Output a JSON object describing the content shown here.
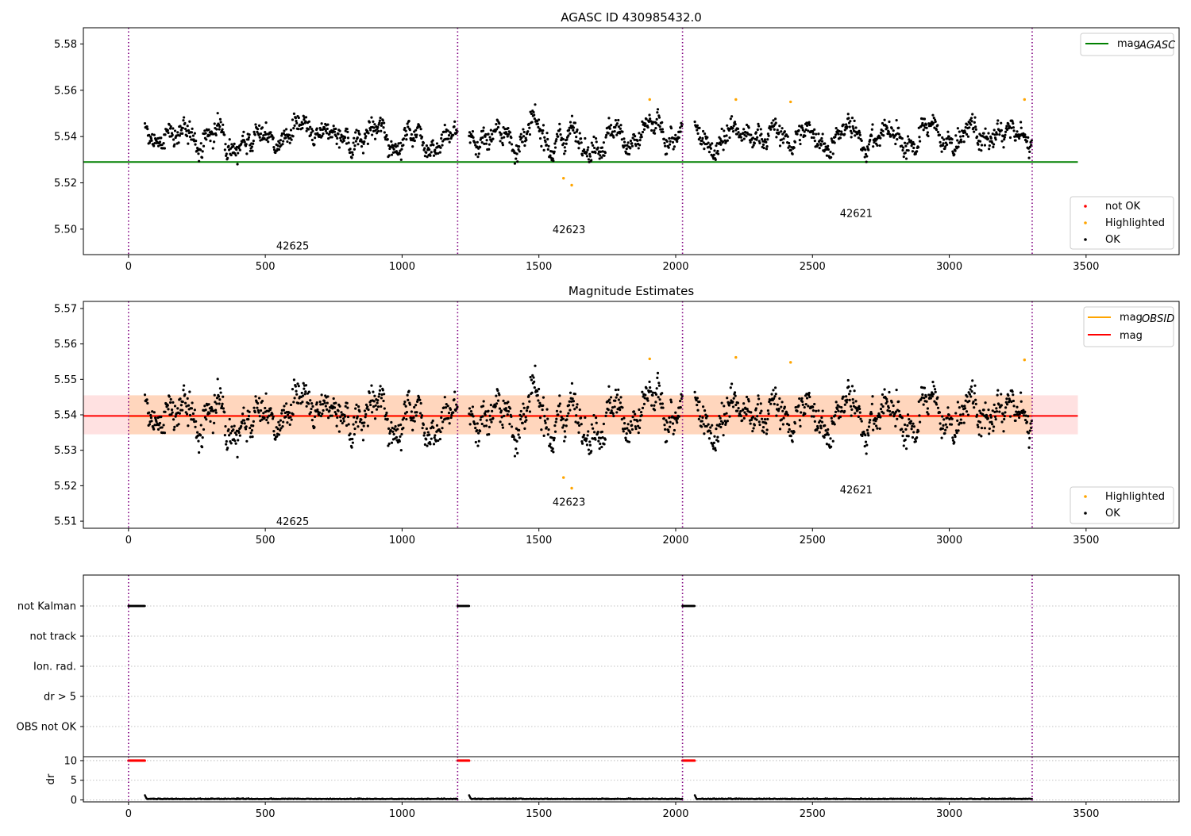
{
  "chart_data": [
    {
      "id": "agasc",
      "type": "scatter",
      "title": "AGASC ID 430985432.0",
      "xlabel": "",
      "ylabel": "",
      "xlim": [
        -165,
        3840
      ],
      "ylim": [
        5.489,
        5.587
      ],
      "xticks": [
        0,
        500,
        1000,
        1500,
        2000,
        2500,
        3000,
        3500
      ],
      "yticks": [
        5.5,
        5.52,
        5.54,
        5.56,
        5.58
      ],
      "ytick_labels": [
        "5.50",
        "5.52",
        "5.54",
        "5.56",
        "5.58"
      ],
      "grid": false,
      "obsid_boundaries": [
        0,
        1203,
        2025,
        3303
      ],
      "obsid_labels": [
        {
          "text": "42625",
          "x": 600,
          "y": 5.493
        },
        {
          "text": "42623",
          "x": 1610,
          "y": 5.5
        },
        {
          "text": "42621",
          "x": 2660,
          "y": 5.507
        }
      ],
      "reference_lines": [
        {
          "name": "mag_AGASC",
          "value": 5.529,
          "x_range": [
            0,
            3470
          ],
          "color": "#008000"
        }
      ],
      "series": [
        {
          "name": "not OK",
          "color": "#ff0000",
          "values": []
        },
        {
          "name": "Highlighted",
          "color": "#ffa500",
          "points": [
            [
              1590,
              5.522
            ],
            [
              1620,
              5.519
            ],
            [
              1905,
              5.556
            ],
            [
              2220,
              5.556
            ],
            [
              2420,
              5.555
            ],
            [
              3275,
              5.556
            ]
          ]
        },
        {
          "name": "OK",
          "color": "#000000",
          "segments": [
            [
              60,
              1203
            ],
            [
              1245,
              2025
            ],
            [
              2070,
              3303
            ]
          ],
          "level": 5.54,
          "spread": 0.006
        }
      ],
      "legends": [
        {
          "placement": "upper-right",
          "items": [
            {
              "label": "mag",
              "sub": "AGASC",
              "kind": "line",
              "color": "#008000"
            }
          ]
        },
        {
          "placement": "lower-right",
          "items": [
            {
              "label": "not OK",
              "kind": "dot",
              "color": "#ff0000"
            },
            {
              "label": "Highlighted",
              "kind": "dot",
              "color": "#ffa500"
            },
            {
              "label": "OK",
              "kind": "dot",
              "color": "#000000"
            }
          ]
        }
      ]
    },
    {
      "id": "estimates",
      "type": "scatter",
      "title": "Magnitude Estimates",
      "xlabel": "",
      "ylabel": "",
      "xlim": [
        -165,
        3840
      ],
      "ylim": [
        5.508,
        5.572
      ],
      "xticks": [
        0,
        500,
        1000,
        1500,
        2000,
        2500,
        3000,
        3500
      ],
      "yticks": [
        5.51,
        5.52,
        5.53,
        5.54,
        5.55,
        5.56,
        5.57
      ],
      "ytick_labels": [
        "5.51",
        "5.52",
        "5.53",
        "5.54",
        "5.55",
        "5.56",
        "5.57"
      ],
      "grid": false,
      "obsid_boundaries": [
        0,
        1203,
        2025,
        3303
      ],
      "obsid_labels": [
        {
          "text": "42625",
          "x": 600,
          "y": 5.51
        },
        {
          "text": "42623",
          "x": 1610,
          "y": 5.5155
        },
        {
          "text": "42621",
          "x": 2660,
          "y": 5.519
        }
      ],
      "bands": [
        {
          "name": "mag band",
          "range": [
            5.5345,
            5.5455
          ],
          "x_range": [
            -165,
            3470
          ],
          "color": "#ffb3b3"
        },
        {
          "name": "mag_OBSID band",
          "range": [
            5.5345,
            5.5455
          ],
          "x_range": [
            0,
            3303
          ],
          "color": "#ffcc99"
        }
      ],
      "reference_lines": [
        {
          "name": "mag_OBSID",
          "value": 5.5396,
          "x_range": [
            0,
            3303
          ],
          "color": "#ffa500"
        },
        {
          "name": "mag",
          "value": 5.5397,
          "x_range": [
            -165,
            3470
          ],
          "color": "#ff0000"
        }
      ],
      "series": [
        {
          "name": "Highlighted",
          "color": "#ffa500",
          "points": [
            [
              1590,
              5.5223
            ],
            [
              1620,
              5.5193
            ],
            [
              1905,
              5.5558
            ],
            [
              2220,
              5.5562
            ],
            [
              2420,
              5.5548
            ],
            [
              3275,
              5.5555
            ]
          ]
        },
        {
          "name": "OK",
          "color": "#000000",
          "segments": [
            [
              60,
              1203
            ],
            [
              1245,
              2025
            ],
            [
              2070,
              3303
            ]
          ],
          "level": 5.54,
          "spread": 0.006
        }
      ],
      "legends": [
        {
          "placement": "upper-right",
          "items": [
            {
              "label": "mag",
              "sub": "OBSID",
              "kind": "line",
              "color": "#ffa500"
            },
            {
              "label": "mag",
              "sub": "",
              "kind": "line",
              "color": "#ff0000"
            }
          ]
        },
        {
          "placement": "lower-right",
          "items": [
            {
              "label": "Highlighted",
              "kind": "dot",
              "color": "#ffa500"
            },
            {
              "label": "OK",
              "kind": "dot",
              "color": "#000000"
            }
          ]
        }
      ]
    },
    {
      "id": "flags",
      "type": "scatter",
      "title": "",
      "xlim": [
        -165,
        3840
      ],
      "categories": [
        "not Kalman",
        "not track",
        "Ion. rad.",
        "dr > 5",
        "OBS not OK"
      ],
      "grid": true,
      "obsid_boundaries": [
        0,
        1203,
        2025,
        3303
      ],
      "series": [
        {
          "name": "not Kalman",
          "color": "#000000",
          "x_ranges": [
            [
              0,
              60
            ],
            [
              1203,
              1245
            ],
            [
              2025,
              2070
            ]
          ]
        }
      ]
    },
    {
      "id": "dr",
      "type": "scatter",
      "title": "",
      "xlabel": "",
      "ylabel": "dr",
      "xlim": [
        -165,
        3840
      ],
      "ylim": [
        -0.5,
        11
      ],
      "xticks": [
        0,
        500,
        1000,
        1500,
        2000,
        2500,
        3000,
        3500
      ],
      "yticks": [
        0,
        5,
        10
      ],
      "grid": true,
      "obsid_boundaries": [
        0,
        1203,
        2025,
        3303
      ],
      "series": [
        {
          "name": "clipped",
          "color": "#ff0000",
          "value": 10,
          "x_ranges": [
            [
              0,
              60
            ],
            [
              1203,
              1245
            ],
            [
              2025,
              2070
            ]
          ]
        },
        {
          "name": "dr",
          "color": "#000000",
          "segments": [
            [
              60,
              1203
            ],
            [
              1245,
              2025
            ],
            [
              2070,
              3303
            ]
          ],
          "level": 0.2
        }
      ]
    }
  ]
}
